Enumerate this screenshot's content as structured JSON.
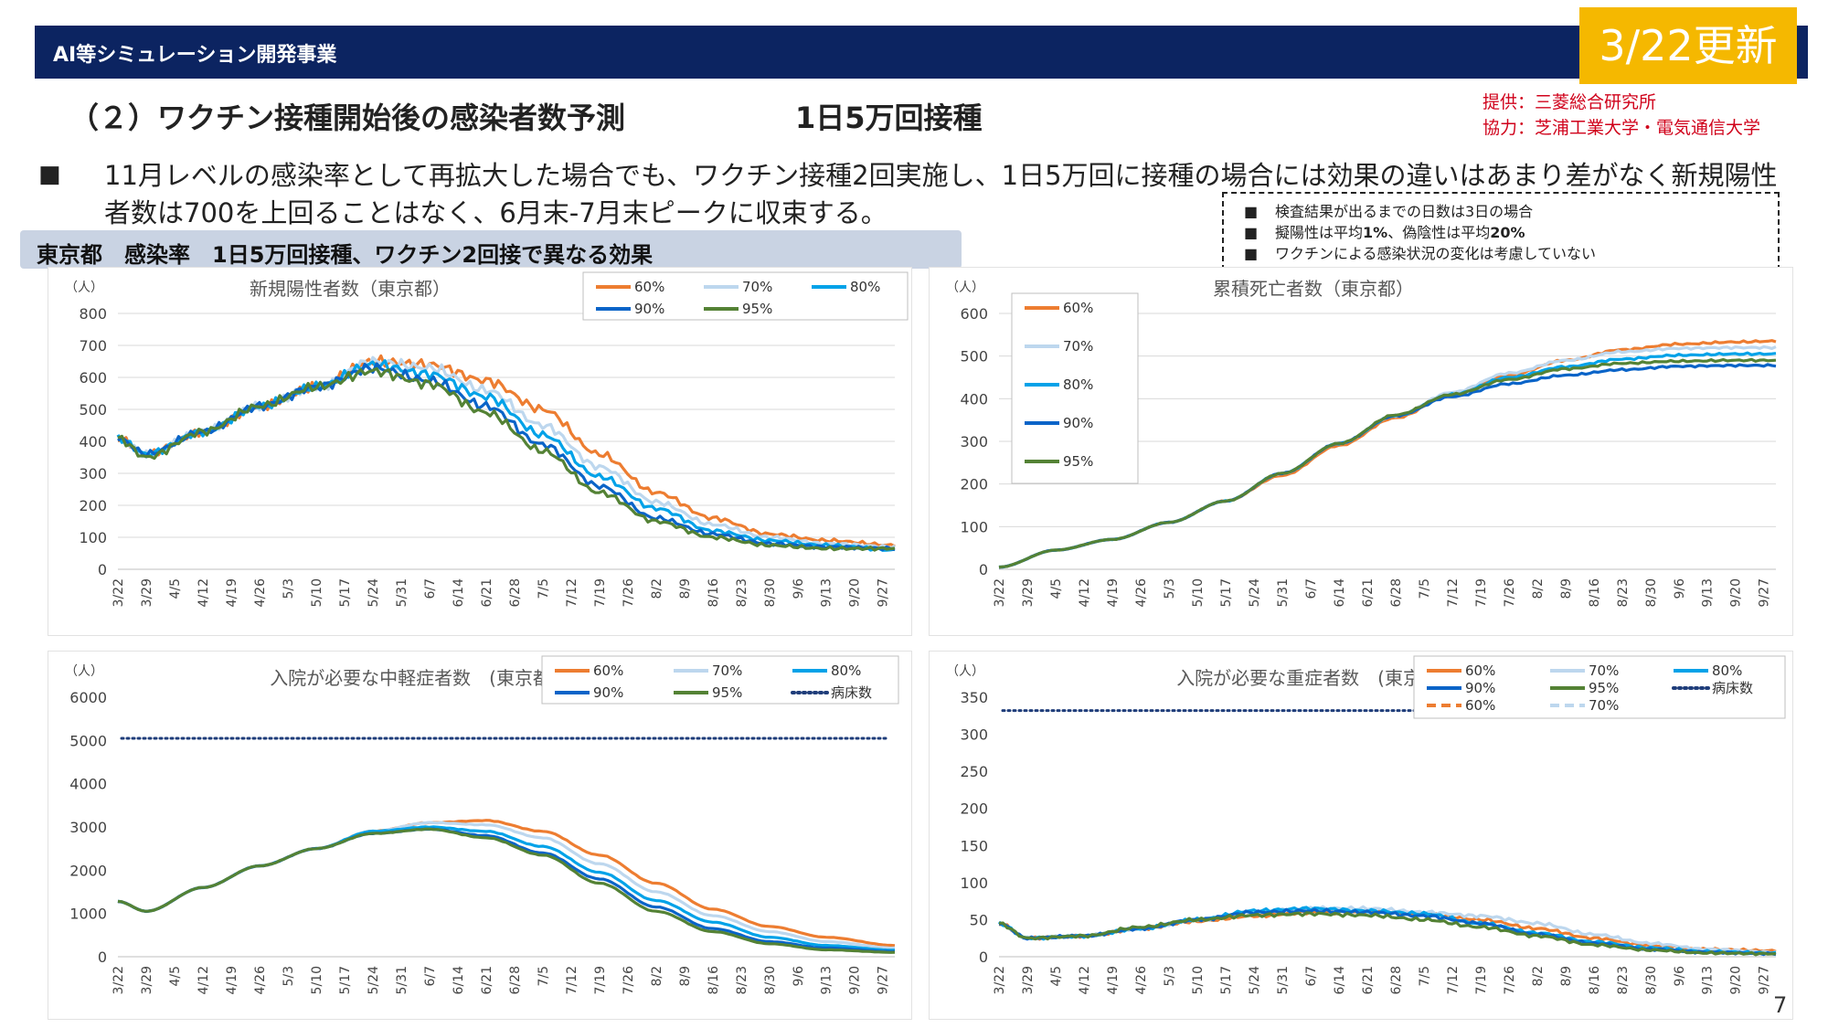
{
  "header": {
    "org_label": "AI等シミュレーション開発事業",
    "update_label": "3/22更新",
    "title": "（２）ワクチン接種開始後の感染者数予測",
    "subtitle": "1日5万回接種",
    "provider": "提供：三菱総合研究所",
    "cooperation": "協力：芝浦工業大学・電気通信大学"
  },
  "bullet": {
    "mark": "■",
    "text": "11月レベルの感染率として再拡大した場合でも、ワクチン接種2回実施し、1日5万回に接種の場合には効果の違いはあまり差がなく新規陽性者数は700を上回ることはなく、6月末-7月末ピークに収束する。"
  },
  "conditions": {
    "mark": "■",
    "line1": "検査結果が出るまでの日数は3日の場合",
    "line2_a": "擬陽性は平均",
    "line2_b": "1%",
    "line2_c": "、偽陰性は平均",
    "line2_d": "20%",
    "line3": "ワクチンによる感染状況の変化は考慮していない"
  },
  "section_label": "東京都　感染率　1日5万回接種、ワクチン2回接で異なる効果",
  "page_number": "7",
  "colors": {
    "header_bg": "#0c2461",
    "badge_bg": "#f5b800",
    "provider_text": "#d0021b",
    "s60": "#ed7d31",
    "s70": "#bdd7ee",
    "s80": "#00a2e8",
    "s90": "#0a64c8",
    "s95": "#548235",
    "beds": "#1f3d7a"
  },
  "x_ticks": [
    "3/22",
    "3/29",
    "4/5",
    "4/12",
    "4/19",
    "4/26",
    "5/3",
    "5/10",
    "5/17",
    "5/24",
    "5/31",
    "6/7",
    "6/14",
    "6/21",
    "6/28",
    "7/5",
    "7/12",
    "7/19",
    "7/26",
    "8/2",
    "8/9",
    "8/16",
    "8/23",
    "8/30",
    "9/6",
    "9/13",
    "9/20",
    "9/27"
  ],
  "chart_data": [
    {
      "id": "new_cases",
      "type": "line",
      "title": "新規陽性者数（東京都）",
      "unit_label": "（人）",
      "x_range": [
        "3/22",
        "9/30"
      ],
      "ylim": [
        0,
        800
      ],
      "y_ticks": [
        0,
        100,
        200,
        300,
        400,
        500,
        600,
        700,
        800
      ],
      "grid": true,
      "legend_position": "top-right",
      "series": [
        {
          "name": "60%",
          "color_key": "s60",
          "x": [
            "3/22",
            "3/29",
            "4/12",
            "4/26",
            "5/10",
            "5/24",
            "6/7",
            "6/21",
            "7/5",
            "7/19",
            "8/2",
            "8/16",
            "8/30",
            "9/13",
            "9/30"
          ],
          "values": [
            410,
            360,
            430,
            510,
            570,
            650,
            640,
            590,
            500,
            360,
            240,
            160,
            110,
            90,
            75
          ]
        },
        {
          "name": "70%",
          "color_key": "s70",
          "x": [
            "3/22",
            "3/29",
            "4/12",
            "4/26",
            "5/10",
            "5/24",
            "6/7",
            "6/21",
            "7/5",
            "7/19",
            "8/2",
            "8/16",
            "8/30",
            "9/13",
            "9/30"
          ],
          "values": [
            410,
            360,
            430,
            510,
            570,
            650,
            630,
            560,
            450,
            320,
            210,
            140,
            100,
            80,
            70
          ]
        },
        {
          "name": "80%",
          "color_key": "s80",
          "x": [
            "3/22",
            "3/29",
            "4/12",
            "4/26",
            "5/10",
            "5/24",
            "6/7",
            "6/21",
            "7/5",
            "7/19",
            "8/2",
            "8/16",
            "8/30",
            "9/13",
            "9/30"
          ],
          "values": [
            410,
            360,
            430,
            510,
            570,
            640,
            610,
            540,
            420,
            290,
            190,
            120,
            90,
            75,
            60
          ]
        },
        {
          "name": "90%",
          "color_key": "s90",
          "x": [
            "3/22",
            "3/29",
            "4/12",
            "4/26",
            "5/10",
            "5/24",
            "6/7",
            "6/21",
            "7/5",
            "7/19",
            "8/2",
            "8/16",
            "8/30",
            "9/13",
            "9/30"
          ],
          "values": [
            410,
            360,
            430,
            510,
            570,
            630,
            590,
            510,
            390,
            260,
            160,
            110,
            80,
            70,
            65
          ]
        },
        {
          "name": "95%",
          "color_key": "s95",
          "x": [
            "3/22",
            "3/29",
            "4/12",
            "4/26",
            "5/10",
            "5/24",
            "6/7",
            "6/21",
            "7/5",
            "7/19",
            "8/2",
            "8/16",
            "8/30",
            "9/13",
            "9/30"
          ],
          "values": [
            410,
            350,
            430,
            510,
            570,
            620,
            580,
            490,
            370,
            240,
            150,
            100,
            75,
            65,
            65
          ]
        }
      ]
    },
    {
      "id": "cumulative_deaths",
      "type": "line",
      "title": "累積死亡者数（東京都）",
      "unit_label": "（人）",
      "x_range": [
        "3/22",
        "9/30"
      ],
      "ylim": [
        0,
        600
      ],
      "y_ticks": [
        0,
        100,
        200,
        300,
        400,
        500,
        600
      ],
      "grid": true,
      "legend_position": "top-left",
      "series": [
        {
          "name": "60%",
          "color_key": "s60",
          "x": [
            "3/22",
            "4/5",
            "4/19",
            "5/3",
            "5/17",
            "5/31",
            "6/14",
            "6/28",
            "7/12",
            "7/26",
            "8/9",
            "8/23",
            "9/6",
            "9/20",
            "9/30"
          ],
          "values": [
            5,
            45,
            70,
            110,
            160,
            220,
            290,
            355,
            410,
            455,
            490,
            515,
            528,
            533,
            535
          ]
        },
        {
          "name": "70%",
          "color_key": "s70",
          "x": [
            "3/22",
            "4/5",
            "4/19",
            "5/3",
            "5/17",
            "5/31",
            "6/14",
            "6/28",
            "7/12",
            "7/26",
            "8/9",
            "8/23",
            "9/6",
            "9/20",
            "9/30"
          ],
          "values": [
            5,
            45,
            70,
            110,
            160,
            225,
            295,
            360,
            415,
            460,
            490,
            510,
            518,
            520,
            520
          ]
        },
        {
          "name": "80%",
          "color_key": "s80",
          "x": [
            "3/22",
            "4/5",
            "4/19",
            "5/3",
            "5/17",
            "5/31",
            "6/14",
            "6/28",
            "7/12",
            "7/26",
            "8/9",
            "8/23",
            "9/6",
            "9/20",
            "9/30"
          ],
          "values": [
            5,
            45,
            70,
            110,
            160,
            225,
            295,
            360,
            410,
            450,
            475,
            493,
            502,
            505,
            505
          ]
        },
        {
          "name": "90%",
          "color_key": "s90",
          "x": [
            "3/22",
            "4/5",
            "4/19",
            "5/3",
            "5/17",
            "5/31",
            "6/14",
            "6/28",
            "7/12",
            "7/26",
            "8/9",
            "8/23",
            "9/6",
            "9/20",
            "9/30"
          ],
          "values": [
            5,
            45,
            70,
            110,
            160,
            225,
            295,
            360,
            405,
            435,
            455,
            468,
            476,
            478,
            478
          ]
        },
        {
          "name": "95%",
          "color_key": "s95",
          "x": [
            "3/22",
            "4/5",
            "4/19",
            "5/3",
            "5/17",
            "5/31",
            "6/14",
            "6/28",
            "7/12",
            "7/26",
            "8/9",
            "8/23",
            "9/6",
            "9/20",
            "9/30"
          ],
          "values": [
            5,
            45,
            70,
            110,
            160,
            225,
            295,
            362,
            410,
            445,
            470,
            483,
            488,
            490,
            490
          ]
        }
      ]
    },
    {
      "id": "moderate_hospitalized",
      "type": "line",
      "title": "入院が必要な中軽症者数　(東京都)",
      "unit_label": "（人）",
      "x_range": [
        "3/22",
        "9/30"
      ],
      "ylim": [
        0,
        6000
      ],
      "y_ticks": [
        0,
        1000,
        2000,
        3000,
        4000,
        5000,
        6000
      ],
      "grid": false,
      "legend_position": "top-right",
      "reference_line": {
        "name": "病床数",
        "value": 5050,
        "color_key": "beds"
      },
      "series": [
        {
          "name": "60%",
          "color_key": "s60",
          "x": [
            "3/22",
            "3/29",
            "4/12",
            "4/26",
            "5/10",
            "5/24",
            "6/7",
            "6/21",
            "7/5",
            "7/19",
            "8/2",
            "8/16",
            "8/30",
            "9/13",
            "9/30"
          ],
          "values": [
            1280,
            1050,
            1600,
            2100,
            2500,
            2900,
            3100,
            3150,
            2900,
            2350,
            1700,
            1100,
            700,
            450,
            260
          ]
        },
        {
          "name": "70%",
          "color_key": "s70",
          "x": [
            "3/22",
            "3/29",
            "4/12",
            "4/26",
            "5/10",
            "5/24",
            "6/7",
            "6/21",
            "7/5",
            "7/19",
            "8/2",
            "8/16",
            "8/30",
            "9/13",
            "9/30"
          ],
          "values": [
            1280,
            1050,
            1600,
            2100,
            2500,
            2900,
            3100,
            3050,
            2750,
            2150,
            1500,
            950,
            580,
            350,
            200
          ]
        },
        {
          "name": "80%",
          "color_key": "s80",
          "x": [
            "3/22",
            "3/29",
            "4/12",
            "4/26",
            "5/10",
            "5/24",
            "6/7",
            "6/21",
            "7/5",
            "7/19",
            "8/2",
            "8/16",
            "8/30",
            "9/13",
            "9/30"
          ],
          "values": [
            1280,
            1050,
            1600,
            2100,
            2500,
            2900,
            3000,
            2900,
            2550,
            1950,
            1300,
            800,
            450,
            260,
            150
          ]
        },
        {
          "name": "90%",
          "color_key": "s90",
          "x": [
            "3/22",
            "3/29",
            "4/12",
            "4/26",
            "5/10",
            "5/24",
            "6/7",
            "6/21",
            "7/5",
            "7/19",
            "8/2",
            "8/16",
            "8/30",
            "9/13",
            "9/30"
          ],
          "values": [
            1280,
            1050,
            1600,
            2100,
            2500,
            2850,
            2950,
            2800,
            2400,
            1800,
            1150,
            650,
            350,
            200,
            120
          ]
        },
        {
          "name": "95%",
          "color_key": "s95",
          "x": [
            "3/22",
            "3/29",
            "4/12",
            "4/26",
            "5/10",
            "5/24",
            "6/7",
            "6/21",
            "7/5",
            "7/19",
            "8/2",
            "8/16",
            "8/30",
            "9/13",
            "9/30"
          ],
          "values": [
            1280,
            1050,
            1600,
            2100,
            2500,
            2850,
            2950,
            2750,
            2350,
            1700,
            1050,
            580,
            300,
            160,
            100
          ]
        }
      ]
    },
    {
      "id": "severe_hospitalized",
      "type": "line",
      "title": "入院が必要な重症者数　(東京都)",
      "unit_label": "（人）",
      "x_range": [
        "3/22",
        "9/30"
      ],
      "ylim": [
        0,
        350
      ],
      "y_ticks": [
        0,
        50,
        100,
        150,
        200,
        250,
        300,
        350
      ],
      "grid": false,
      "legend_position": "top-right",
      "reference_line": {
        "name": "病床数",
        "value": 332,
        "color_key": "beds"
      },
      "dashed_legend_entries": [
        "60%",
        "70%"
      ],
      "series": [
        {
          "name": "60%",
          "color_key": "s60",
          "x": [
            "3/22",
            "3/29",
            "4/12",
            "4/26",
            "5/10",
            "5/24",
            "6/7",
            "6/21",
            "7/5",
            "7/19",
            "8/2",
            "8/16",
            "8/30",
            "9/13",
            "9/30"
          ],
          "values": [
            45,
            25,
            28,
            38,
            48,
            55,
            60,
            60,
            58,
            50,
            38,
            25,
            15,
            10,
            8
          ]
        },
        {
          "name": "70%",
          "color_key": "s70",
          "x": [
            "3/22",
            "3/29",
            "4/12",
            "4/26",
            "5/10",
            "5/24",
            "6/7",
            "6/21",
            "7/5",
            "7/19",
            "8/2",
            "8/16",
            "8/30",
            "9/13",
            "9/30"
          ],
          "values": [
            45,
            25,
            28,
            38,
            50,
            60,
            65,
            65,
            60,
            55,
            45,
            30,
            18,
            10,
            6
          ]
        },
        {
          "name": "80%",
          "color_key": "s80",
          "x": [
            "3/22",
            "3/29",
            "4/12",
            "4/26",
            "5/10",
            "5/24",
            "6/7",
            "6/21",
            "7/5",
            "7/19",
            "8/2",
            "8/16",
            "8/30",
            "9/13",
            "9/30"
          ],
          "values": [
            45,
            25,
            28,
            38,
            50,
            62,
            65,
            62,
            58,
            45,
            32,
            20,
            12,
            7,
            5
          ]
        },
        {
          "name": "90%",
          "color_key": "s90",
          "x": [
            "3/22",
            "3/29",
            "4/12",
            "4/26",
            "5/10",
            "5/24",
            "6/7",
            "6/21",
            "7/5",
            "7/19",
            "8/2",
            "8/16",
            "8/30",
            "9/13",
            "9/30"
          ],
          "values": [
            45,
            25,
            28,
            38,
            50,
            60,
            62,
            60,
            55,
            45,
            30,
            18,
            10,
            6,
            4
          ]
        },
        {
          "name": "95%",
          "color_key": "s95",
          "x": [
            "3/22",
            "3/29",
            "4/12",
            "4/26",
            "5/10",
            "5/24",
            "6/7",
            "6/21",
            "7/5",
            "7/19",
            "8/2",
            "8/16",
            "8/30",
            "9/13",
            "9/30"
          ],
          "values": [
            45,
            25,
            28,
            40,
            50,
            56,
            58,
            56,
            50,
            40,
            28,
            16,
            9,
            5,
            4
          ]
        }
      ]
    }
  ]
}
